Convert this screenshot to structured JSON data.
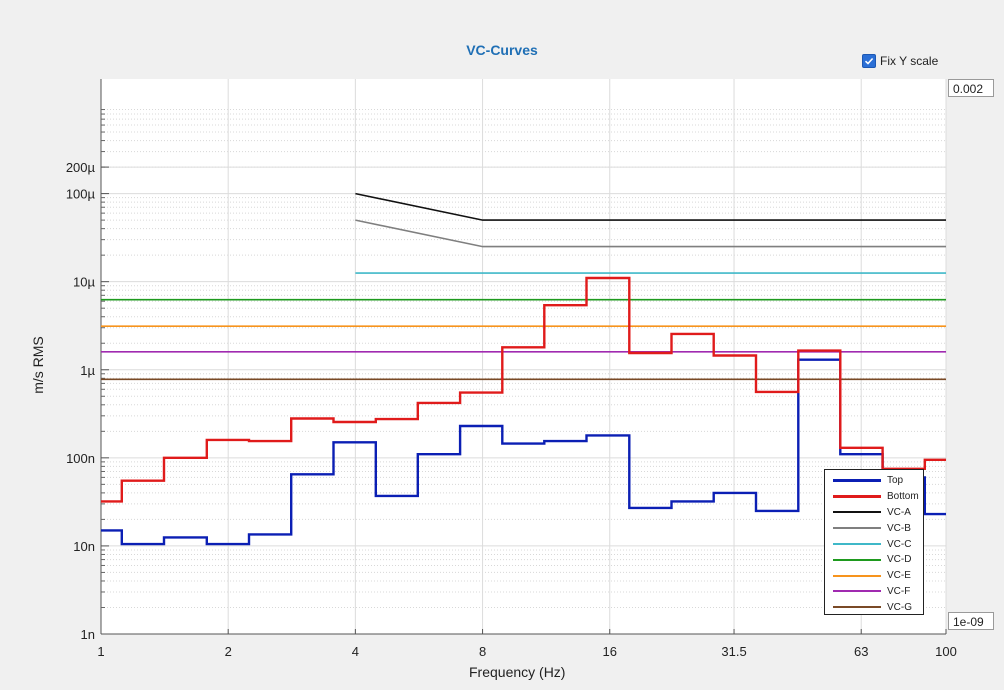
{
  "window": {
    "fix_y_label": "Fix Y scale",
    "fix_y_checked": true,
    "y_max_field": "0.002",
    "y_min_field": "1e-09"
  },
  "chart_data": {
    "type": "line",
    "title": "VC-Curves",
    "xlabel": "Frequency (Hz)",
    "ylabel": "m/s RMS",
    "x_scale": "log",
    "y_scale": "log",
    "xlim": [
      1,
      100
    ],
    "ylim": [
      1e-09,
      0.002
    ],
    "x_ticks": [
      1,
      2,
      4,
      8,
      16,
      31.5,
      63,
      100
    ],
    "x_tick_labels": [
      "1",
      "2",
      "4",
      "8",
      "16",
      "31.5",
      "63",
      "100"
    ],
    "y_ticks": [
      1e-09,
      1e-08,
      1e-07,
      1e-06,
      1e-05,
      0.0001,
      0.0002
    ],
    "y_tick_labels": [
      "1n",
      "10n",
      "100n",
      "1µ",
      "10µ",
      "100µ",
      "200µ"
    ],
    "grid": true,
    "legend_position": "bottom-right",
    "series": [
      {
        "name": "Top",
        "color": "#0b1fb4",
        "style": "step",
        "x": [
          1,
          1.12,
          1.41,
          1.78,
          2.24,
          2.82,
          3.55,
          4.47,
          5.62,
          7.08,
          8.91,
          11.2,
          14.1,
          17.8,
          22.4,
          28.2,
          35.5,
          44.7,
          56.2,
          70.8,
          89.1,
          100
        ],
        "y": [
          1.5e-08,
          1.05e-08,
          1.25e-08,
          1.05e-08,
          1.35e-08,
          6.5e-08,
          1.5e-07,
          3.7e-08,
          1.1e-07,
          2.3e-07,
          1.45e-07,
          1.55e-07,
          1.8e-07,
          2.7e-08,
          3.2e-08,
          4e-08,
          2.5e-08,
          1.3e-06,
          1.1e-07,
          6e-08,
          2.3e-08,
          2.3e-08
        ]
      },
      {
        "name": "Bottom",
        "color": "#e01b1b",
        "style": "step",
        "x": [
          1,
          1.12,
          1.41,
          1.78,
          2.24,
          2.82,
          3.55,
          4.47,
          5.62,
          7.08,
          8.91,
          11.2,
          14.1,
          17.8,
          22.4,
          28.2,
          35.5,
          44.7,
          56.2,
          70.8,
          89.1,
          100
        ],
        "y": [
          3.2e-08,
          5.5e-08,
          1e-07,
          1.6e-07,
          1.55e-07,
          2.8e-07,
          2.55e-07,
          2.75e-07,
          4.2e-07,
          5.5e-07,
          1.8e-06,
          5.4e-06,
          1.1e-05,
          1.55e-06,
          2.55e-06,
          1.45e-06,
          5.6e-07,
          1.65e-06,
          1.3e-07,
          7.5e-08,
          9.5e-08,
          9.5e-08
        ]
      },
      {
        "name": "VC-A",
        "color": "#111111",
        "x": [
          4,
          8,
          100
        ],
        "y": [
          0.0001,
          5e-05,
          5e-05
        ]
      },
      {
        "name": "VC-B",
        "color": "#7f7f7f",
        "x": [
          4,
          8,
          100
        ],
        "y": [
          5e-05,
          2.5e-05,
          2.5e-05
        ]
      },
      {
        "name": "VC-C",
        "color": "#3fb8c8",
        "x": [
          4,
          100
        ],
        "y": [
          1.25e-05,
          1.25e-05
        ]
      },
      {
        "name": "VC-D",
        "color": "#1e9a1e",
        "x": [
          1,
          100
        ],
        "y": [
          6.25e-06,
          6.25e-06
        ]
      },
      {
        "name": "VC-E",
        "color": "#f7941d",
        "x": [
          1,
          100
        ],
        "y": [
          3.12e-06,
          3.12e-06
        ]
      },
      {
        "name": "VC-F",
        "color": "#a02ab0",
        "x": [
          1,
          100
        ],
        "y": [
          1.6e-06,
          1.6e-06
        ]
      },
      {
        "name": "VC-G",
        "color": "#7a4a26",
        "x": [
          1,
          100
        ],
        "y": [
          7.8e-07,
          7.8e-07
        ]
      }
    ]
  }
}
